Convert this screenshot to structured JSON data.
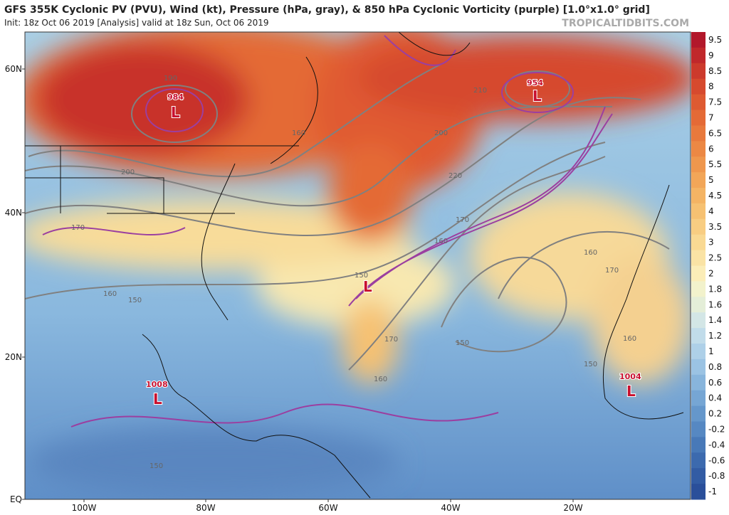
{
  "header": {
    "title": "GFS 355K Cyclonic PV (PVU), Wind (kt), Pressure (hPa, gray), & 850 hPa Cyclonic Vorticity (purple) [1.0°x1.0° grid]",
    "subtitle": "Init: 18z Oct 06 2019   [Analysis]   valid at 18z Sun, Oct 06 2019",
    "watermark": "TROPICALTIDBITS.COM"
  },
  "map": {
    "lat_labels": [
      "60N",
      "40N",
      "20N",
      "EQ"
    ],
    "lon_labels": [
      "100W",
      "80W",
      "60W",
      "40W",
      "20W"
    ],
    "lows": [
      {
        "pressure": "984",
        "symbol": "L"
      },
      {
        "pressure": "954",
        "symbol": "L"
      },
      {
        "pressure": "1008",
        "symbol": "L"
      },
      {
        "pressure": "1004",
        "symbol": "L"
      },
      {
        "symbol": "L"
      }
    ],
    "contour_labels": [
      "190",
      "160",
      "200",
      "170",
      "160",
      "150",
      "210",
      "200",
      "220",
      "170",
      "160",
      "150",
      "160",
      "170",
      "150",
      "160",
      "170",
      "160",
      "150",
      "150"
    ]
  },
  "colorbar": {
    "labels": [
      "9.5",
      "9",
      "8.5",
      "8",
      "7.5",
      "7",
      "6.5",
      "6",
      "5.5",
      "5",
      "4.5",
      "4",
      "3.5",
      "3",
      "2.5",
      "2",
      "1.8",
      "1.6",
      "1.4",
      "1.2",
      "1",
      "0.8",
      "0.6",
      "0.4",
      "0.2",
      "-0.2",
      "-0.4",
      "-0.6",
      "-0.8",
      "-1"
    ],
    "colors": [
      "#b2182b",
      "#c0282b",
      "#cc3a2c",
      "#d64a2e",
      "#de5a31",
      "#e46a36",
      "#e8793c",
      "#ec8844",
      "#ef974d",
      "#f2a658",
      "#f4b464",
      "#f6c172",
      "#f8cd82",
      "#f9d993",
      "#fae3a5",
      "#fbedb8",
      "#f2f2cc",
      "#e4eed8",
      "#d3e6e6",
      "#c1dcea",
      "#aed0e8",
      "#9bc3e3",
      "#88b5dc",
      "#76a6d4",
      "#6597cb",
      "#5688c2",
      "#4879b8",
      "#3c6aae",
      "#325ca4",
      "#2a4f9a"
    ]
  }
}
